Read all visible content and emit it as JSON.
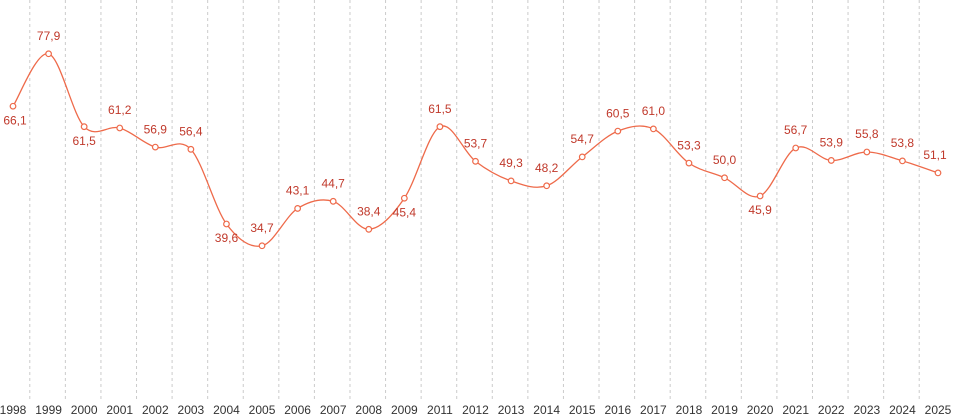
{
  "chart_data": {
    "type": "line",
    "categories": [
      "1998",
      "1999",
      "2000",
      "2001",
      "2002",
      "2003",
      "2004",
      "2005",
      "2006",
      "2007",
      "2008",
      "2009",
      "2011",
      "2012",
      "2013",
      "2014",
      "2015",
      "2016",
      "2017",
      "2018",
      "2019",
      "2020",
      "2021",
      "2022",
      "2023",
      "2024",
      "2025"
    ],
    "series": [
      {
        "color": "#ee6a4a",
        "values": [
          66.1,
          77.9,
          61.5,
          61.2,
          56.9,
          56.4,
          39.6,
          34.7,
          43.1,
          44.7,
          38.4,
          45.4,
          61.5,
          53.7,
          49.3,
          48.2,
          54.7,
          60.5,
          61.0,
          53.3,
          50.0,
          45.9,
          56.7,
          53.9,
          55.8,
          53.8,
          51.1
        ],
        "value_labels": [
          "66,1",
          "77,9",
          "61,5",
          "61,2",
          "56,9",
          "56,4",
          "39,6",
          "34,7",
          "43,1",
          "44,7",
          "38,4",
          "45,4",
          "61,5",
          "53,7",
          "49,3",
          "48,2",
          "54,7",
          "60,5",
          "61,0",
          "53,3",
          "50,0",
          "45,9",
          "56,7",
          "53,9",
          "55,8",
          "53,8",
          "51,1"
        ]
      }
    ],
    "ylim": [
      0,
      90
    ],
    "grid": true
  }
}
